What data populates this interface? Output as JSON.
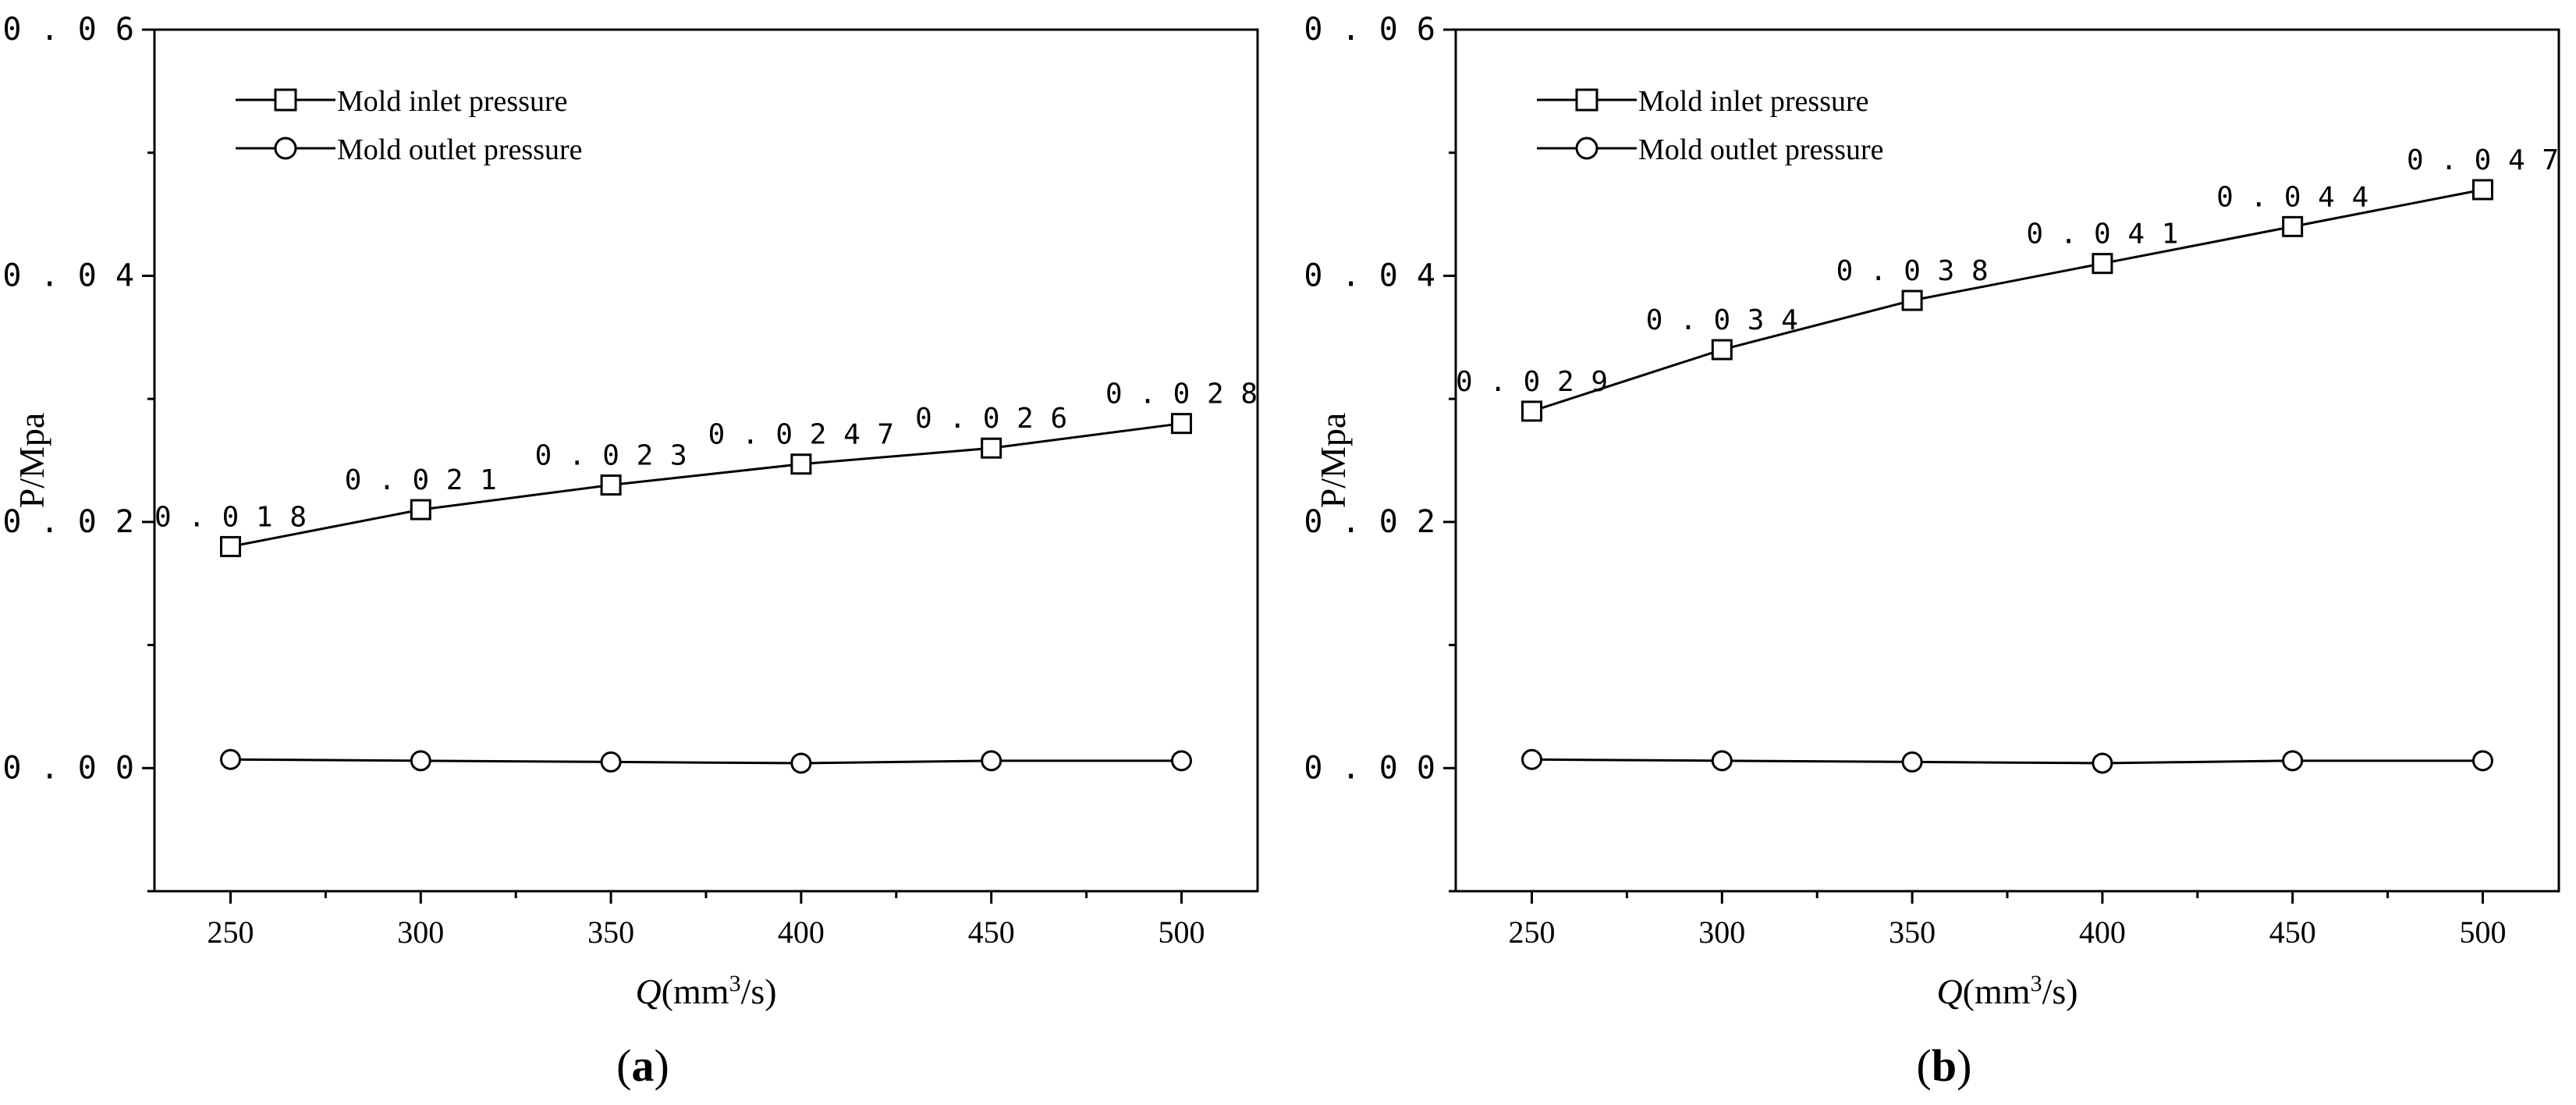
{
  "chart_data": [
    {
      "type": "line",
      "panel_label": "a",
      "x": [
        250,
        300,
        350,
        400,
        450,
        500
      ],
      "xlabel_italic": "Q",
      "xlabel_rest": "(mm",
      "xlabel_sup": "3",
      "xlabel_end": "/s)",
      "ylabel": "P/Mpa",
      "xlim": [
        230,
        520
      ],
      "ylim": [
        -0.01,
        0.06
      ],
      "xticks": [
        "250",
        "300",
        "350",
        "400",
        "450",
        "500"
      ],
      "yticks": [
        {
          "value": 0.0,
          "label": "0.00"
        },
        {
          "value": 0.02,
          "label": "0.02"
        },
        {
          "value": 0.04,
          "label": "0.04"
        },
        {
          "value": 0.06,
          "label": "0.06"
        }
      ],
      "grid": false,
      "legend_position": "top-left",
      "series": [
        {
          "name": "Mold inlet pressure",
          "marker": "square",
          "values": [
            0.018,
            0.021,
            0.023,
            0.0247,
            0.026,
            0.028
          ],
          "data_labels": [
            "0.018",
            "0.021",
            "0.023",
            "0.0247",
            "0.026",
            "0.028"
          ]
        },
        {
          "name": "Mold outlet pressure",
          "marker": "circle",
          "values": [
            0.0007,
            0.0006,
            0.0005,
            0.0004,
            0.0006,
            0.0006
          ]
        }
      ]
    },
    {
      "type": "line",
      "panel_label": "b",
      "x": [
        250,
        300,
        350,
        400,
        450,
        500
      ],
      "xlabel_italic": "Q",
      "xlabel_rest": "(mm",
      "xlabel_sup": "3",
      "xlabel_end": "/s)",
      "ylabel": "P/Mpa",
      "xlim": [
        230,
        520
      ],
      "ylim": [
        -0.01,
        0.06
      ],
      "xticks": [
        "250",
        "300",
        "350",
        "400",
        "450",
        "500"
      ],
      "yticks": [
        {
          "value": 0.0,
          "label": "0.00"
        },
        {
          "value": 0.02,
          "label": "0.02"
        },
        {
          "value": 0.04,
          "label": "0.04"
        },
        {
          "value": 0.06,
          "label": "0.06"
        }
      ],
      "grid": false,
      "legend_position": "top-left",
      "series": [
        {
          "name": "Mold inlet pressure",
          "marker": "square",
          "values": [
            0.029,
            0.034,
            0.038,
            0.041,
            0.044,
            0.047
          ],
          "data_labels": [
            "0.029",
            "0.034",
            "0.038",
            "0.041",
            "0.044",
            "0.047"
          ]
        },
        {
          "name": "Mold outlet pressure",
          "marker": "circle",
          "values": [
            0.0007,
            0.0006,
            0.0005,
            0.0004,
            0.0006,
            0.0006
          ]
        }
      ]
    }
  ]
}
